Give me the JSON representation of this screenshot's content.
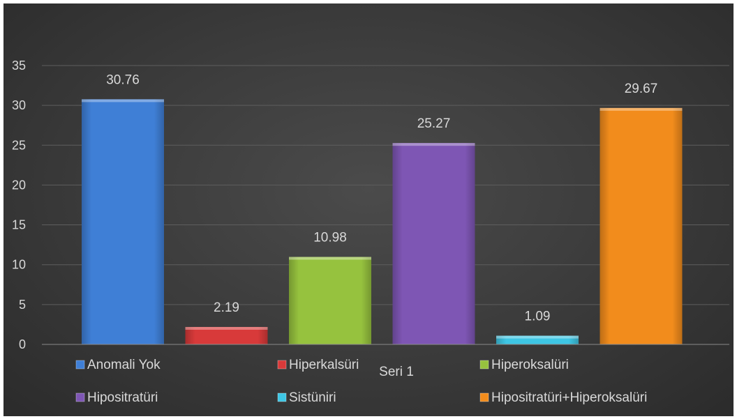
{
  "chart_data": {
    "type": "bar",
    "categories": [
      "Seri 1"
    ],
    "series": [
      {
        "name": "Anomali Yok",
        "values": [
          30.76
        ],
        "color": "#3f7fd6"
      },
      {
        "name": "Hiperkalsüri",
        "values": [
          2.19
        ],
        "color": "#d83a3a"
      },
      {
        "name": "Hiperoksalüri",
        "values": [
          10.98
        ],
        "color": "#96c23e"
      },
      {
        "name": "Hipositratüri",
        "values": [
          25.27
        ],
        "color": "#7e56b4"
      },
      {
        "name": "Sistüniri",
        "values": [
          1.09
        ],
        "color": "#3ec6e4"
      },
      {
        "name": "Hipositratüri+Hiperoksalüri",
        "values": [
          29.67
        ],
        "color": "#f28c1c"
      }
    ],
    "data_labels": [
      "30.76",
      "2.19",
      "10.98",
      "25.27",
      "1.09",
      "29.67"
    ],
    "yticks": [
      "0",
      "5",
      "10",
      "15",
      "20",
      "25",
      "30",
      "35"
    ],
    "ylim": [
      0,
      40
    ],
    "grid": true,
    "legend_position": "bottom",
    "title": "",
    "xlabel": "",
    "ylabel": ""
  }
}
